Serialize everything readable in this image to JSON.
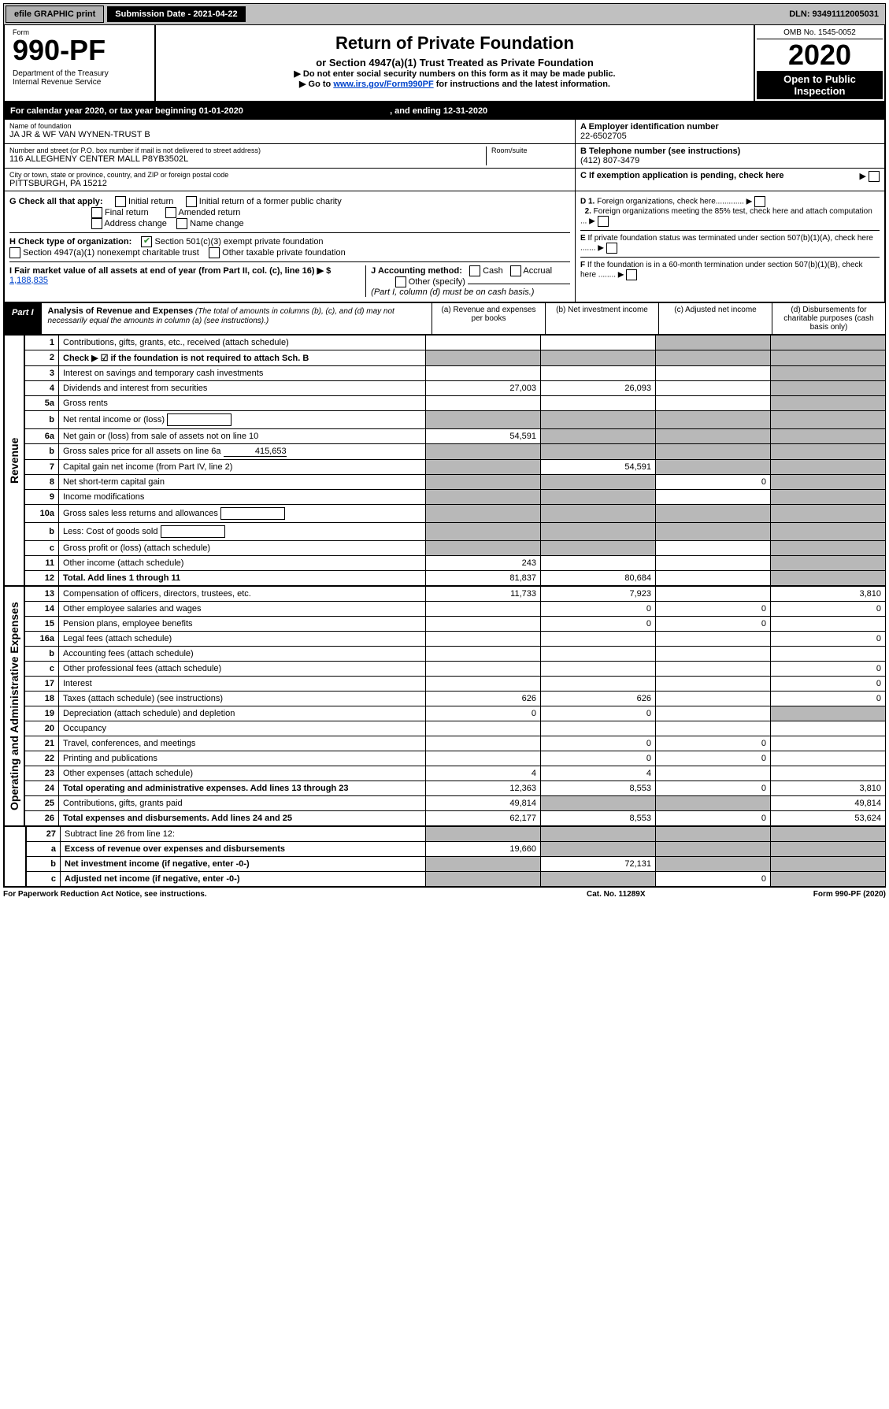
{
  "topbar": {
    "efile": "efile GRAPHIC print",
    "submission": "Submission Date - 2021-04-22",
    "dln": "DLN: 93491112005031"
  },
  "header": {
    "form_label": "Form",
    "form_no": "990-PF",
    "dept": "Department of the Treasury\nInternal Revenue Service",
    "title": "Return of Private Foundation",
    "subtitle": "or Section 4947(a)(1) Trust Treated as Private Foundation",
    "note1": "▶ Do not enter social security numbers on this form as it may be made public.",
    "note2_pre": "▶ Go to ",
    "note2_link": "www.irs.gov/Form990PF",
    "note2_post": " for instructions and the latest information.",
    "omb": "OMB No. 1545-0052",
    "year": "2020",
    "open": "Open to Public Inspection"
  },
  "calendar": {
    "text_a": "For calendar year 2020, or tax year beginning ",
    "begin": "01-01-2020",
    "text_b": " , and ending ",
    "end": "12-31-2020"
  },
  "foundation": {
    "name_label": "Name of foundation",
    "name": "JA JR & WF VAN WYNEN-TRUST B",
    "ein_label": "A Employer identification number",
    "ein": "22-6502705",
    "addr_label": "Number and street (or P.O. box number if mail is not delivered to street address)",
    "addr": "116 ALLEGHENY CENTER MALL P8YB3502L",
    "room_label": "Room/suite",
    "tel_label": "B Telephone number (see instructions)",
    "tel": "(412) 807-3479",
    "city_label": "City or town, state or province, country, and ZIP or foreign postal code",
    "city": "PITTSBURGH, PA  15212",
    "c_label": "C If exemption application is pending, check here"
  },
  "checks": {
    "g_label": "G Check all that apply:",
    "g1": "Initial return",
    "g2": "Initial return of a former public charity",
    "g3": "Final return",
    "g4": "Amended return",
    "g5": "Address change",
    "g6": "Name change",
    "h_label": "H Check type of organization:",
    "h1": "Section 501(c)(3) exempt private foundation",
    "h2": "Section 4947(a)(1) nonexempt charitable trust",
    "h3": "Other taxable private foundation",
    "i_label": "I Fair market value of all assets at end of year (from Part II, col. (c), line 16) ▶ $",
    "i_value": "1,188,835",
    "j_label": "J Accounting method:",
    "j1": "Cash",
    "j2": "Accrual",
    "j3": "Other (specify)",
    "j_note": "(Part I, column (d) must be on cash basis.)",
    "d1": "D 1. Foreign organizations, check here .............",
    "d2": "2. Foreign organizations meeting the 85% test, check here and attach computation ...",
    "e": "E If private foundation status was terminated under section 507(b)(1)(A), check here .......",
    "f": "F If the foundation is in a 60-month termination under section 507(b)(1)(B), check here ........"
  },
  "part1": {
    "tag": "Part I",
    "title": "Analysis of Revenue and Expenses",
    "title_note": " (The total of amounts in columns (b), (c), and (d) may not necessarily equal the amounts in column (a) (see instructions).)",
    "col_a": "(a) Revenue and expenses per books",
    "col_b": "(b) Net investment income",
    "col_c": "(c) Adjusted net income",
    "col_d": "(d) Disbursements for charitable purposes (cash basis only)"
  },
  "sections": {
    "revenue": "Revenue",
    "expenses": "Operating and Administrative Expenses"
  },
  "rows": [
    {
      "n": "1",
      "d": "Contributions, gifts, grants, etc., received (attach schedule)",
      "a": "",
      "b": "",
      "c": "s",
      "dd": "s"
    },
    {
      "n": "2",
      "d": "Check ▶ ☑ if the foundation is not required to attach Sch. B",
      "a": "s",
      "b": "s",
      "c": "s",
      "dd": "s",
      "bold": true
    },
    {
      "n": "3",
      "d": "Interest on savings and temporary cash investments",
      "a": "",
      "b": "",
      "c": "",
      "dd": "s"
    },
    {
      "n": "4",
      "d": "Dividends and interest from securities",
      "a": "27,003",
      "b": "26,093",
      "c": "",
      "dd": "s"
    },
    {
      "n": "5a",
      "d": "Gross rents",
      "a": "",
      "b": "",
      "c": "",
      "dd": "s"
    },
    {
      "n": "b",
      "d": "Net rental income or (loss)",
      "a": "s",
      "b": "s",
      "c": "s",
      "dd": "s",
      "inline": true
    },
    {
      "n": "6a",
      "d": "Net gain or (loss) from sale of assets not on line 10",
      "a": "54,591",
      "b": "s",
      "c": "s",
      "dd": "s"
    },
    {
      "n": "b",
      "d": "Gross sales price for all assets on line 6a",
      "a": "s",
      "b": "s",
      "c": "s",
      "dd": "s",
      "inline": true,
      "inval": "415,653"
    },
    {
      "n": "7",
      "d": "Capital gain net income (from Part IV, line 2)",
      "a": "s",
      "b": "54,591",
      "c": "s",
      "dd": "s"
    },
    {
      "n": "8",
      "d": "Net short-term capital gain",
      "a": "s",
      "b": "s",
      "c": "0",
      "dd": "s"
    },
    {
      "n": "9",
      "d": "Income modifications",
      "a": "s",
      "b": "s",
      "c": "",
      "dd": "s"
    },
    {
      "n": "10a",
      "d": "Gross sales less returns and allowances",
      "a": "s",
      "b": "s",
      "c": "s",
      "dd": "s",
      "inline": true
    },
    {
      "n": "b",
      "d": "Less: Cost of goods sold",
      "a": "s",
      "b": "s",
      "c": "s",
      "dd": "s",
      "inline": true
    },
    {
      "n": "c",
      "d": "Gross profit or (loss) (attach schedule)",
      "a": "s",
      "b": "s",
      "c": "",
      "dd": "s"
    },
    {
      "n": "11",
      "d": "Other income (attach schedule)",
      "a": "243",
      "b": "",
      "c": "",
      "dd": "s"
    },
    {
      "n": "12",
      "d": "Total. Add lines 1 through 11",
      "a": "81,837",
      "b": "80,684",
      "c": "",
      "dd": "s",
      "bold": true
    }
  ],
  "exp_rows": [
    {
      "n": "13",
      "d": "Compensation of officers, directors, trustees, etc.",
      "a": "11,733",
      "b": "7,923",
      "c": "",
      "dd": "3,810"
    },
    {
      "n": "14",
      "d": "Other employee salaries and wages",
      "a": "",
      "b": "0",
      "c": "0",
      "dd": "0"
    },
    {
      "n": "15",
      "d": "Pension plans, employee benefits",
      "a": "",
      "b": "0",
      "c": "0",
      "dd": ""
    },
    {
      "n": "16a",
      "d": "Legal fees (attach schedule)",
      "a": "",
      "b": "",
      "c": "",
      "dd": "0"
    },
    {
      "n": "b",
      "d": "Accounting fees (attach schedule)",
      "a": "",
      "b": "",
      "c": "",
      "dd": ""
    },
    {
      "n": "c",
      "d": "Other professional fees (attach schedule)",
      "a": "",
      "b": "",
      "c": "",
      "dd": "0"
    },
    {
      "n": "17",
      "d": "Interest",
      "a": "",
      "b": "",
      "c": "",
      "dd": "0"
    },
    {
      "n": "18",
      "d": "Taxes (attach schedule) (see instructions)",
      "a": "626",
      "b": "626",
      "c": "",
      "dd": "0"
    },
    {
      "n": "19",
      "d": "Depreciation (attach schedule) and depletion",
      "a": "0",
      "b": "0",
      "c": "",
      "dd": "s"
    },
    {
      "n": "20",
      "d": "Occupancy",
      "a": "",
      "b": "",
      "c": "",
      "dd": ""
    },
    {
      "n": "21",
      "d": "Travel, conferences, and meetings",
      "a": "",
      "b": "0",
      "c": "0",
      "dd": ""
    },
    {
      "n": "22",
      "d": "Printing and publications",
      "a": "",
      "b": "0",
      "c": "0",
      "dd": ""
    },
    {
      "n": "23",
      "d": "Other expenses (attach schedule)",
      "a": "4",
      "b": "4",
      "c": "",
      "dd": ""
    },
    {
      "n": "24",
      "d": "Total operating and administrative expenses. Add lines 13 through 23",
      "a": "12,363",
      "b": "8,553",
      "c": "0",
      "dd": "3,810",
      "bold": true
    },
    {
      "n": "25",
      "d": "Contributions, gifts, grants paid",
      "a": "49,814",
      "b": "s",
      "c": "s",
      "dd": "49,814"
    },
    {
      "n": "26",
      "d": "Total expenses and disbursements. Add lines 24 and 25",
      "a": "62,177",
      "b": "8,553",
      "c": "0",
      "dd": "53,624",
      "bold": true
    }
  ],
  "final_rows": [
    {
      "n": "27",
      "d": "Subtract line 26 from line 12:",
      "a": "s",
      "b": "s",
      "c": "s",
      "dd": "s"
    },
    {
      "n": "a",
      "d": "Excess of revenue over expenses and disbursements",
      "a": "19,660",
      "b": "s",
      "c": "s",
      "dd": "s",
      "bold": true
    },
    {
      "n": "b",
      "d": "Net investment income (if negative, enter -0-)",
      "a": "s",
      "b": "72,131",
      "c": "s",
      "dd": "s",
      "bold": true
    },
    {
      "n": "c",
      "d": "Adjusted net income (if negative, enter -0-)",
      "a": "s",
      "b": "s",
      "c": "0",
      "dd": "s",
      "bold": true
    }
  ],
  "footer": {
    "left": "For Paperwork Reduction Act Notice, see instructions.",
    "mid": "Cat. No. 11289X",
    "right": "Form 990-PF (2020)"
  }
}
